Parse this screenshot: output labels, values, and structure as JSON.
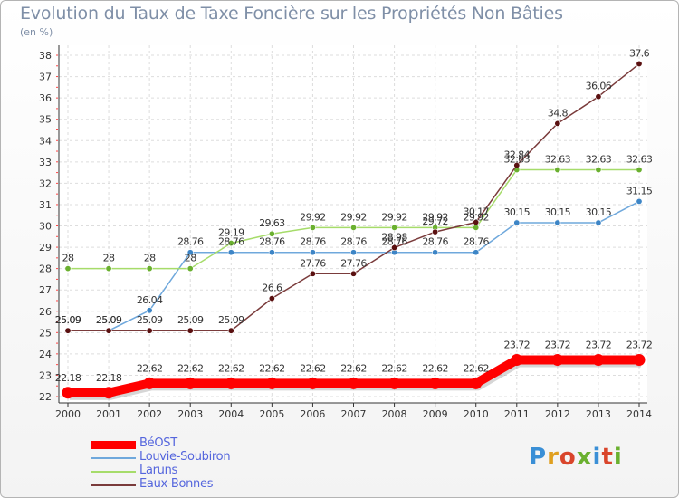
{
  "header": {
    "title": "Evolution du Taux de Taxe Foncière sur les Propriétés Non Bâties",
    "subtitle": "(en %)"
  },
  "logo": {
    "text": "Proxiti",
    "colors": [
      "#3a8fd6",
      "#e0a020",
      "#d9452b",
      "#6ab02f",
      "#3a8fd6",
      "#d9452b",
      "#6ab02f"
    ]
  },
  "chart_data": {
    "type": "line",
    "x": [
      "2000",
      "2001",
      "2002",
      "2003",
      "2004",
      "2005",
      "2006",
      "2007",
      "2008",
      "2009",
      "2010",
      "2011",
      "2012",
      "2013",
      "2014"
    ],
    "ylim": [
      22,
      38
    ],
    "yticks": [
      22,
      23,
      24,
      25,
      26,
      27,
      28,
      29,
      30,
      31,
      32,
      33,
      34,
      35,
      36,
      37,
      38
    ],
    "grid": true,
    "legend_position": "bottom-left",
    "series": [
      {
        "name": "BéOST",
        "color": "#ff0000",
        "marker": "#ff0000",
        "width": 10,
        "values": [
          22.18,
          22.18,
          22.62,
          22.62,
          22.62,
          22.62,
          22.62,
          22.62,
          22.62,
          22.62,
          22.62,
          23.72,
          23.72,
          23.72,
          23.72
        ],
        "labels": [
          "22.18",
          "22.18",
          "22.62",
          "22.62",
          "22.62",
          "22.62",
          "22.62",
          "22.62",
          "22.62",
          "22.62",
          "22.62",
          "23.72",
          "23.72",
          "23.72",
          "23.72"
        ]
      },
      {
        "name": "Louvie-Soubiron",
        "color": "#6fa8dc",
        "marker": "#3d85c6",
        "width": 1.5,
        "values": [
          25.09,
          25.09,
          26.04,
          28.76,
          28.76,
          28.76,
          28.76,
          28.76,
          28.76,
          28.76,
          28.76,
          30.15,
          30.15,
          30.15,
          31.15
        ],
        "labels": [
          "25.09",
          "25.09",
          "26.04",
          "28.76",
          "28.76",
          "28.76",
          "28.76",
          "28.76",
          "28.76",
          "28.76",
          "28.76",
          "30.15",
          "30.15",
          "30.15",
          "31.15"
        ]
      },
      {
        "name": "Laruns",
        "color": "#a6dc6a",
        "marker": "#6ab02f",
        "width": 1.5,
        "values": [
          28,
          28,
          28,
          28,
          29.19,
          29.63,
          29.92,
          29.92,
          29.92,
          29.92,
          29.92,
          32.63,
          32.63,
          32.63,
          32.63
        ],
        "labels": [
          "28",
          "28",
          "28",
          "28",
          "29.19",
          "29.63",
          "29.92",
          "29.92",
          "29.92",
          "29.92",
          "29.92",
          "32.63",
          "32.63",
          "32.63",
          "32.63"
        ]
      },
      {
        "name": "Eaux-Bonnes",
        "color": "#7a3b3b",
        "marker": "#5a1010",
        "width": 1.5,
        "values": [
          25.09,
          25.09,
          25.09,
          25.09,
          25.09,
          26.6,
          27.76,
          27.76,
          28.98,
          29.72,
          30.17,
          32.84,
          34.8,
          36.06,
          37.6
        ],
        "labels": [
          "25.09",
          "25.09",
          "25.09",
          "25.09",
          "25.09",
          "26.6",
          "27.76",
          "27.76",
          "28.98",
          "29.72",
          "30.17",
          "32.84",
          "34.8",
          "36.06",
          "37.6"
        ]
      }
    ]
  }
}
